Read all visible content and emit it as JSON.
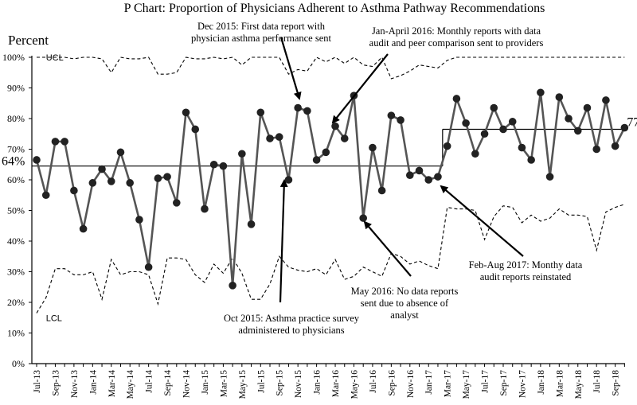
{
  "chart_data": {
    "type": "line",
    "title": "P Chart: Proportion of Physicians Adherent to Asthma Pathway Recommendations",
    "ylabel": "Percent",
    "xlabel": "",
    "ylim": [
      0,
      100
    ],
    "yticks": [
      "0%",
      "10%",
      "20%",
      "30%",
      "40%",
      "50%",
      "60%",
      "70%",
      "80%",
      "90%",
      "100%"
    ],
    "grid": false,
    "x_tick_labels": [
      "Jul-13",
      "Sep-13",
      "Nov-13",
      "Jan-14",
      "Mar-14",
      "May-14",
      "Jul-14",
      "Sep-14",
      "Nov-14",
      "Jan-15",
      "Mar-15",
      "May-15",
      "Jul-15",
      "Sep-15",
      "Nov-15",
      "Jan-16",
      "Mar-16",
      "May-16",
      "Jul-16",
      "Sep-16",
      "Nov-16",
      "Jan-17",
      "Mar-17",
      "May-17",
      "Jul-17",
      "Sep-17",
      "Nov-17",
      "Jan-18",
      "Mar-18",
      "May-18",
      "Jul-18",
      "Sep-18"
    ],
    "series": [
      {
        "values": [
          66.5,
          55,
          72.5,
          72.5,
          56.5,
          44,
          59,
          63.5,
          59.5,
          69,
          59,
          47,
          31.5,
          60.5,
          61,
          52.5,
          82,
          76.5,
          50.5,
          65,
          64.5,
          25.5,
          68.5,
          45.5,
          82,
          73.5,
          74,
          60,
          83.5,
          82.5,
          66.5,
          69,
          77.5,
          73.5,
          87.5,
          47.5,
          70.5,
          56.5,
          81,
          79.5,
          61.5,
          63,
          60,
          61,
          71,
          86.5,
          78.5,
          68.5,
          75,
          83.5,
          76.5,
          79,
          70.5,
          66.5,
          88.5,
          61,
          87,
          80,
          76,
          83.5,
          70,
          86,
          71,
          77
        ]
      }
    ],
    "center_line": {
      "segments": [
        {
          "from_index": 0,
          "to_index": 43,
          "value": 64.5
        },
        {
          "from_index": 44,
          "to_index": 63,
          "value": 76.5
        }
      ],
      "start_label": "64%",
      "end_label": "77%"
    },
    "ucl": {
      "label": "UCL",
      "values": [
        100,
        100,
        100,
        100,
        100,
        100,
        100,
        100,
        100,
        100,
        100,
        100,
        100,
        100,
        100,
        100,
        100,
        100,
        100,
        100,
        100,
        100,
        100,
        100,
        100,
        100,
        100,
        100,
        100,
        100,
        100,
        100,
        100,
        100,
        100,
        100,
        100,
        100,
        100,
        100,
        100,
        100,
        100,
        100,
        100,
        100,
        100,
        100,
        100,
        100,
        100,
        100,
        100,
        100,
        100,
        100,
        100,
        100,
        100,
        100,
        100,
        100,
        100,
        100
      ],
      "observed": [
        100,
        100,
        100,
        100,
        99.5,
        100,
        100,
        99.5,
        95,
        100,
        99.5,
        99.5,
        100,
        94.5,
        94.5,
        95,
        100,
        99.5,
        99.5,
        100,
        99.5,
        100,
        97.5,
        100,
        100,
        100,
        100,
        94.5,
        96,
        95.5,
        100,
        98.5,
        100,
        98,
        100,
        97.5,
        97,
        100,
        93,
        94,
        95.5,
        97.5,
        97,
        96.5,
        99,
        100,
        100,
        100,
        100,
        100,
        100,
        100,
        100,
        100,
        100,
        100,
        100,
        100,
        100,
        100,
        100,
        100,
        100,
        100
      ]
    },
    "lcl": {
      "label": "LCL",
      "values": [
        16.5,
        21.5,
        31,
        31,
        29,
        29,
        30,
        21,
        34,
        29,
        30,
        30,
        29,
        19.5,
        34.5,
        34.5,
        34,
        29,
        26.5,
        32.5,
        29.5,
        34.5,
        29.5,
        21,
        21,
        26,
        35,
        31.5,
        30.5,
        30,
        31,
        29,
        34,
        27.5,
        28.5,
        31.5,
        30,
        28.5,
        36,
        35,
        32.5,
        33.5,
        32,
        31,
        51,
        50.5,
        50.5,
        50,
        40.5,
        48,
        51.5,
        51,
        46,
        48.5,
        46.5,
        47.5,
        50.5,
        48.5,
        48.5,
        48,
        37,
        49.5,
        51,
        52
      ]
    },
    "annotations": [
      {
        "text": [
          "Dec 2015: First data report with",
          "physician asthma performance  sent"
        ]
      },
      {
        "text": [
          "Jan-April 2016: Monthly reports with data",
          "audit and peer comparison sent to providers"
        ]
      },
      {
        "text": [
          "Oct 2015: Asthma practice survey",
          "administered to physicians"
        ]
      },
      {
        "text": [
          "May 2016: No data reports",
          "sent  due to absence of",
          "analyst"
        ]
      },
      {
        "text": [
          "Feb-Aug 2017: Monthy data",
          "audit reports reinstated"
        ]
      }
    ]
  }
}
